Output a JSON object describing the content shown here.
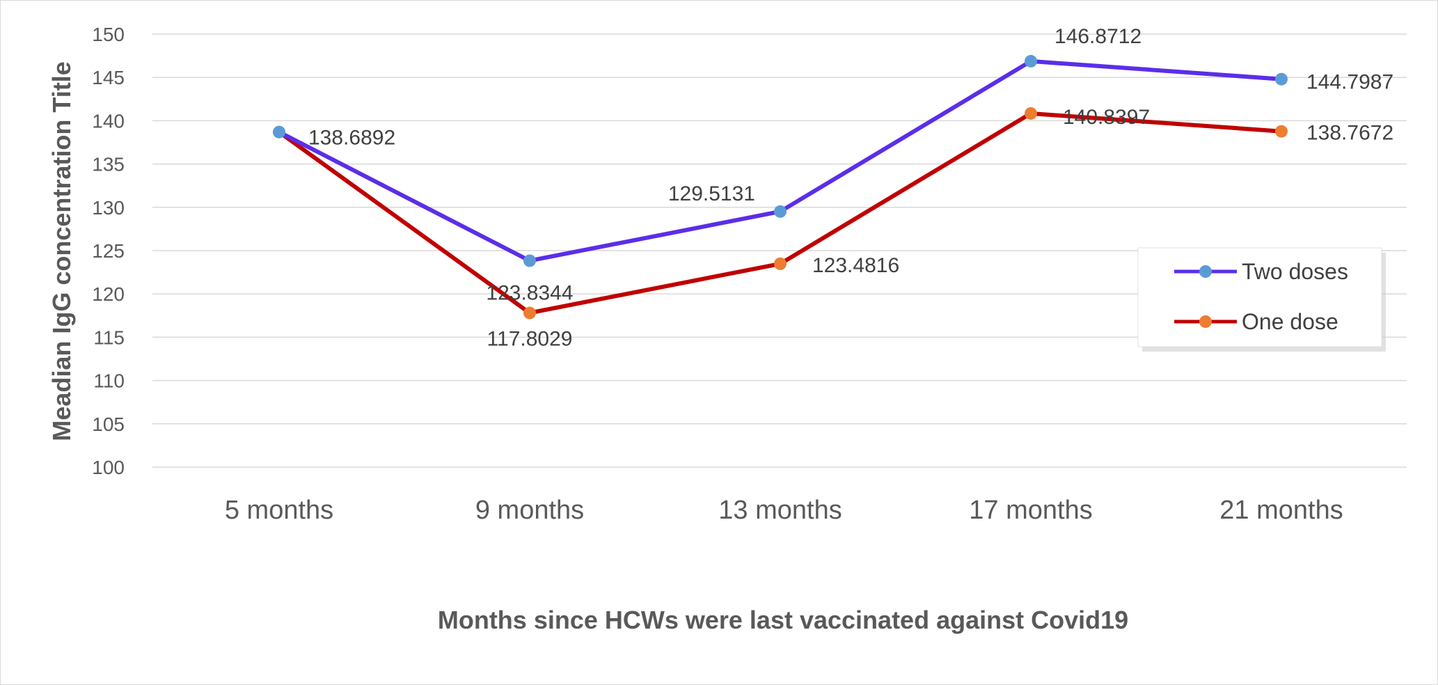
{
  "chart_data": {
    "type": "line",
    "title": "",
    "xlabel": "Months since HCWs were last vaccinated against Covid19",
    "ylabel": "Meadian IgG concentration Title",
    "categories": [
      "5 months",
      "9 months",
      "13 months",
      "17 months",
      "21 months"
    ],
    "ylim": [
      100,
      150
    ],
    "yticks": [
      100,
      105,
      110,
      115,
      120,
      125,
      130,
      135,
      140,
      145,
      150
    ],
    "grid": true,
    "legend_position": "right",
    "series": [
      {
        "name": "Two doses",
        "values": [
          138.6892,
          123.8344,
          129.5131,
          146.8712,
          144.7987
        ],
        "labels": [
          "138.6892",
          "123.8344",
          "129.5131",
          "146.8712",
          "144.7987"
        ],
        "line_color": "#5b2ee8",
        "marker_color": "#5b9bd5"
      },
      {
        "name": "One dose",
        "values": [
          138.6892,
          117.8029,
          123.4816,
          140.8397,
          138.7672
        ],
        "labels": [
          "",
          "117.8029",
          "123.4816",
          "140.8397",
          "138.7672"
        ],
        "line_color": "#c00000",
        "marker_color": "#ed7d31"
      }
    ]
  }
}
